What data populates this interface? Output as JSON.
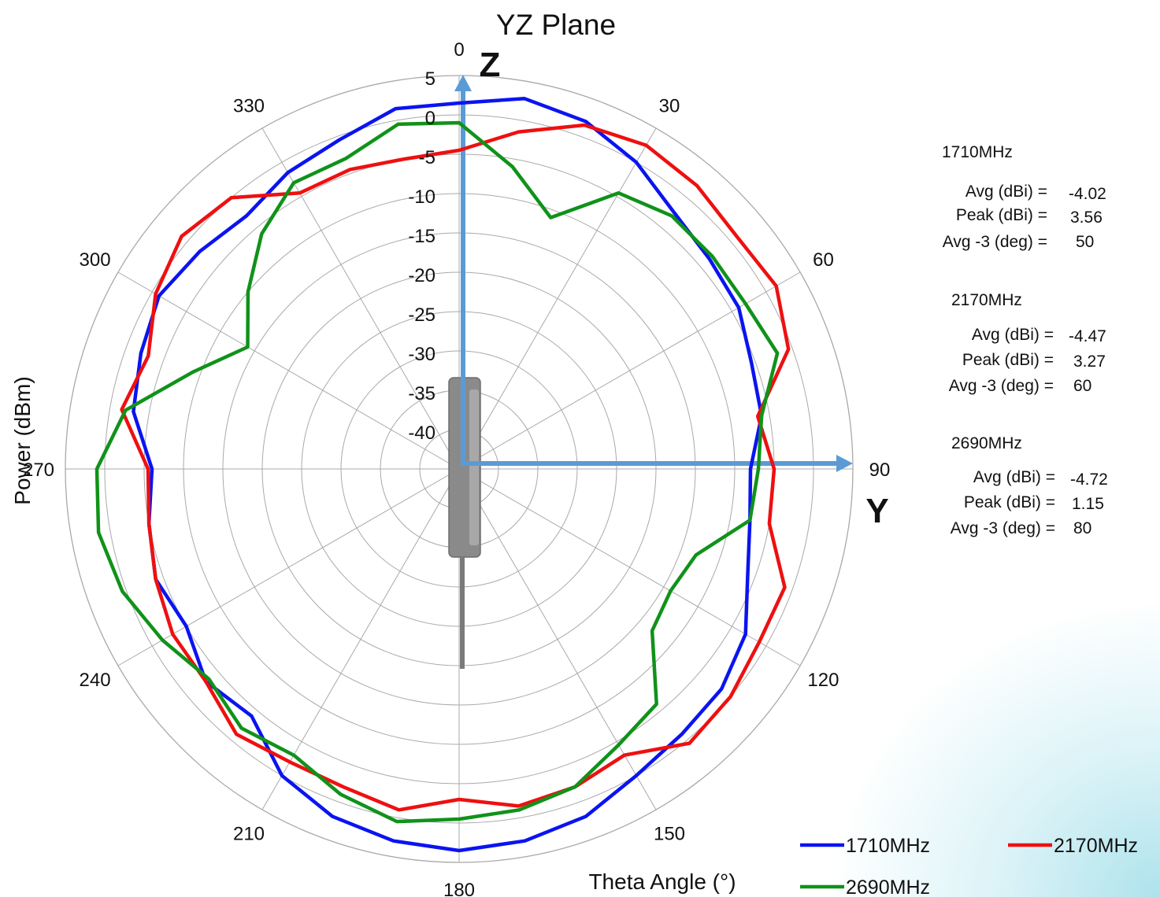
{
  "chart_data": {
    "type": "polar",
    "title": "YZ Plane",
    "theta_label": "Theta  Angle (°)",
    "radial_label": "Power (dBm)",
    "r_range": [
      -45,
      5
    ],
    "r_ticks": [
      "5",
      "0",
      "-5",
      "-10",
      "-15",
      "-20",
      "-25",
      "-30",
      "-35",
      "-40"
    ],
    "r_tick_values": [
      5,
      0,
      -5,
      -10,
      -15,
      -20,
      -25,
      -30,
      -35,
      -40
    ],
    "theta_ticks": [
      "0",
      "30",
      "60",
      "90",
      "120",
      "150",
      "180",
      "210",
      "240",
      "270",
      "300",
      "330"
    ],
    "theta_tick_values": [
      0,
      30,
      60,
      90,
      120,
      150,
      180,
      210,
      240,
      270,
      300,
      330
    ],
    "grid": true,
    "axis_labels": {
      "z": "Z",
      "y": "Y"
    },
    "legend_position": "bottom-right",
    "series": [
      {
        "name": "1710MHz",
        "color": "#0a14f0",
        "theta": [
          0,
          10,
          20,
          30,
          40,
          50,
          60,
          70,
          80,
          90,
          100,
          110,
          120,
          130,
          140,
          150,
          160,
          170,
          180,
          190,
          200,
          210,
          220,
          230,
          240,
          250,
          260,
          270,
          280,
          290,
          300,
          310,
          320,
          330,
          340,
          350
        ],
        "r": [
          1.5,
          2.8,
          2.0,
          0.0,
          -2.5,
          -3.5,
          -4.0,
          -5.5,
          -6.0,
          -8.0,
          -7.5,
          -6.0,
          -3.0,
          -1.5,
          -1.0,
          0.0,
          2.0,
          3.0,
          3.5,
          3.0,
          2.0,
          0.0,
          -4.0,
          -3.0,
          -5.0,
          -4.0,
          -5.0,
          -6.0,
          -3.0,
          -2.0,
          -1.0,
          -2.0,
          -3.0,
          -1.5,
          -0.5,
          1.5
        ]
      },
      {
        "name": "2170MHz",
        "color": "#ee1010",
        "theta": [
          0,
          10,
          20,
          30,
          40,
          50,
          60,
          70,
          80,
          90,
          100,
          110,
          120,
          130,
          140,
          150,
          160,
          170,
          180,
          190,
          200,
          210,
          220,
          230,
          240,
          250,
          260,
          270,
          280,
          290,
          300,
          310,
          320,
          330,
          340,
          350
        ],
        "r": [
          -4.5,
          -1.5,
          1.5,
          2.5,
          2.0,
          1.0,
          1.5,
          -0.5,
          -6.5,
          -5.0,
          -5.0,
          -1.0,
          -1.0,
          0.0,
          0.5,
          -3.0,
          -2.0,
          -1.5,
          -3.0,
          -1.0,
          -2.0,
          -2.0,
          -1.0,
          -3.0,
          -3.0,
          -4.0,
          -5.0,
          -5.5,
          -1.5,
          -3.0,
          -0.5,
          1.0,
          0.0,
          -4.5,
          -4.5,
          -5.0
        ]
      },
      {
        "name": "2690MHz",
        "color": "#10921a",
        "theta": [
          0,
          10,
          20,
          30,
          40,
          50,
          60,
          70,
          80,
          90,
          100,
          110,
          120,
          130,
          140,
          150,
          160,
          170,
          180,
          190,
          200,
          210,
          220,
          230,
          240,
          250,
          260,
          270,
          280,
          290,
          300,
          310,
          320,
          330,
          340,
          350
        ],
        "r": [
          -1.0,
          -6.0,
          -11.0,
          -4.5,
          -3.0,
          -3.0,
          -3.0,
          -2.0,
          -6.0,
          -7.0,
          -7.5,
          -13.0,
          -14.0,
          -13.0,
          -6.0,
          -4.5,
          -2.0,
          -1.0,
          -0.5,
          0.5,
          -1.0,
          -3.0,
          -2.0,
          -3.5,
          -1.5,
          0.5,
          1.5,
          1.0,
          -2.0,
          -9.0,
          -14.0,
          -10.0,
          -6.0,
          -3.0,
          -3.0,
          -0.5
        ]
      }
    ]
  },
  "stats": [
    {
      "freq": "1710MHz",
      "avg_label": "Avg (dBi) =",
      "avg_value": "-4.02",
      "peak_label": "Peak (dBi) =",
      "peak_value": "3.56",
      "avg3_label": "Avg -3 (deg) =",
      "avg3_value": "50"
    },
    {
      "freq": "2170MHz",
      "avg_label": "Avg (dBi) =",
      "avg_value": "-4.47",
      "peak_label": "Peak (dBi) =",
      "peak_value": "3.27",
      "avg3_label": "Avg -3 (deg) =",
      "avg3_value": "60"
    },
    {
      "freq": "2690MHz",
      "avg_label": "Avg (dBi) =",
      "avg_value": "-4.72",
      "peak_label": "Peak (dBi) =",
      "peak_value": "1.15",
      "avg3_label": "Avg -3 (deg) =",
      "avg3_value": "80"
    }
  ],
  "colors": {
    "grid": "#a9a9a9",
    "axis_arrow": "#5b9bd5",
    "device": "#8a8a8a"
  }
}
